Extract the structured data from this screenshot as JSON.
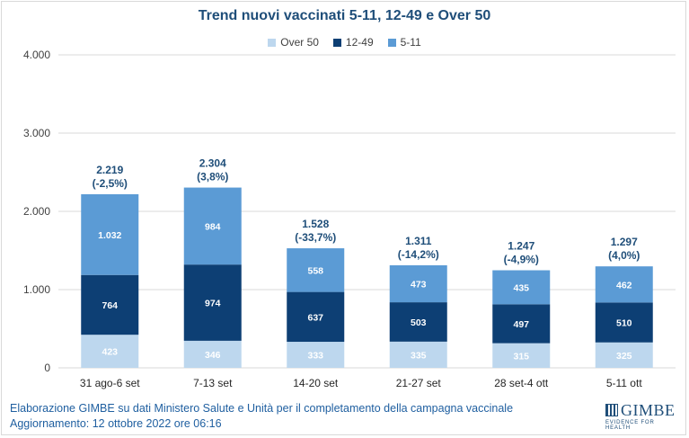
{
  "chart_data": {
    "type": "bar",
    "stacked": true,
    "title": "Trend nuovi vaccinati 5-11, 12-49 e Over 50",
    "categories": [
      "31 ago-6 set",
      "7-13 set",
      "14-20 set",
      "21-27 set",
      "28 set-4 ott",
      "5-11 ott"
    ],
    "series": [
      {
        "name": "Over 50",
        "color": "#bdd7ee",
        "values": [
          423,
          346,
          333,
          335,
          315,
          325
        ],
        "labels": [
          "423",
          "346",
          "333",
          "335",
          "315",
          "325"
        ]
      },
      {
        "name": "12-49",
        "color": "#0d3f74",
        "values": [
          764,
          974,
          637,
          503,
          497,
          510
        ],
        "labels": [
          "764",
          "974",
          "637",
          "503",
          "497",
          "510"
        ]
      },
      {
        "name": "5-11",
        "color": "#5b9bd5",
        "values": [
          1032,
          984,
          558,
          473,
          435,
          462
        ],
        "labels": [
          "1.032",
          "984",
          "558",
          "473",
          "435",
          "462"
        ]
      }
    ],
    "totals": [
      {
        "value": "2.219",
        "change": "(-2,5%)"
      },
      {
        "value": "2.304",
        "change": "(3,8%)"
      },
      {
        "value": "1.528",
        "change": "(-33,7%)"
      },
      {
        "value": "1.311",
        "change": "(-14,2%)"
      },
      {
        "value": "1.247",
        "change": "(-4,9%)"
      },
      {
        "value": "1.297",
        "change": "(4,0%)"
      }
    ],
    "yticks": [
      {
        "value": 0,
        "label": "0"
      },
      {
        "value": 1000,
        "label": "1.000"
      },
      {
        "value": 2000,
        "label": "2.000"
      },
      {
        "value": 3000,
        "label": "3.000"
      },
      {
        "value": 4000,
        "label": "4.000"
      }
    ],
    "ylim": [
      0,
      4000
    ],
    "grid": true,
    "legend_position": "top-center",
    "xlabel": "",
    "ylabel": ""
  },
  "footer": {
    "line1": "Elaborazione GIMBE su dati Ministero Salute e Unità per il completamento della campagna vaccinale",
    "line2": "Aggiornamento: 12 ottobre 2022 ore 06:16"
  },
  "logo": {
    "name": "GIMBE",
    "tagline": "EVIDENCE FOR HEALTH"
  },
  "colors": {
    "title": "#1f4e79",
    "total_label": "#1f4e79",
    "grid": "#d9d9d9",
    "footer_text": "#1f5fa0"
  }
}
